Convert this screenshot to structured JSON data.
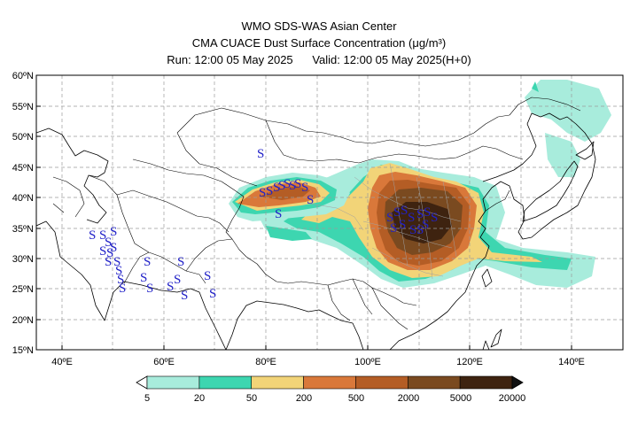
{
  "titles": {
    "center": "WMO SDS-WAS Asian Center",
    "product": "CMA CUACE Dust Surface Concentration",
    "units": "(μg/m³)",
    "run_label": "Run:",
    "run_time": "12:00 05 May 2025",
    "valid_label": "Valid:",
    "valid_time": "12:00 05 May 2025(H+0)"
  },
  "axes": {
    "lat_labels": [
      "60ºN",
      "55ºN",
      "50ºN",
      "45ºN",
      "40ºN",
      "35ºN",
      "30ºN",
      "25ºN",
      "20ºN",
      "15ºN"
    ],
    "lon_labels": [
      "40ºE",
      "60ºE",
      "80ºE",
      "100ºE",
      "120ºE",
      "140ºE"
    ],
    "lat_range": [
      15,
      60
    ],
    "lon_range": [
      35,
      150
    ],
    "grid": true
  },
  "legend": {
    "ticks": [
      "5",
      "20",
      "50",
      "200",
      "500",
      "2000",
      "5000",
      "20000"
    ],
    "colors": [
      "#a8ecdc",
      "#3dd6b0",
      "#f2d478",
      "#d9783a",
      "#b45d25",
      "#7a4a20",
      "#3e2310"
    ]
  },
  "observation_symbol": "S",
  "symbol_color": "#2222c8",
  "land_color": "#ffffff",
  "border_color": "#000000"
}
